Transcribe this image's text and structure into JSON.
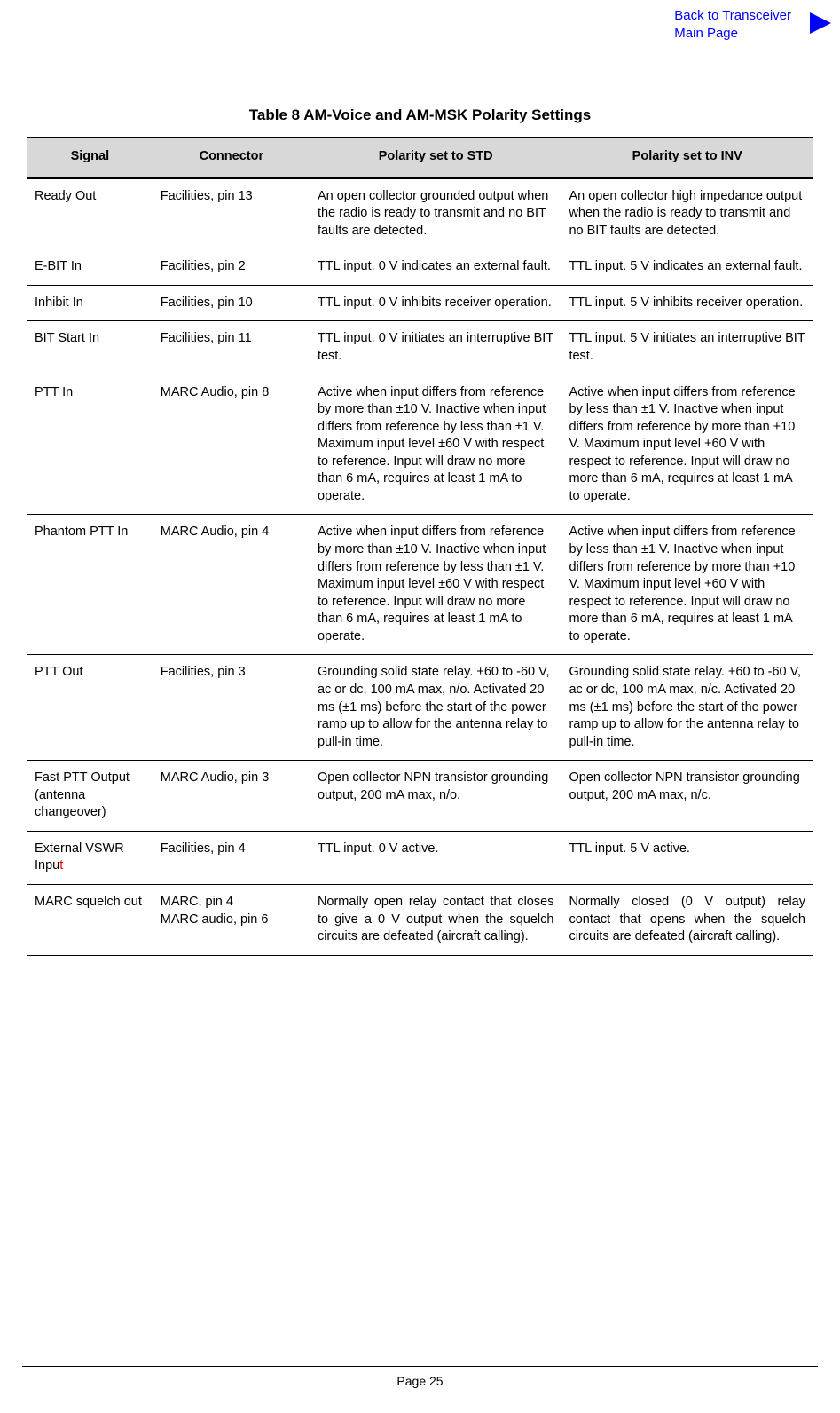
{
  "header": {
    "back_link_line1": "Back to Transceiver",
    "back_link_line2": "Main Page"
  },
  "table": {
    "title": "Table 8 AM-Voice and AM-MSK Polarity Settings",
    "columns": {
      "signal": "Signal",
      "connector": "Connector",
      "std": "Polarity set to STD",
      "inv": "Polarity set to INV"
    },
    "rows": [
      {
        "signal": "Ready Out",
        "connector": "Facilities, pin 13",
        "std": "An open collector grounded output when the radio is ready to transmit and no BIT faults are detected.",
        "inv": "An open collector high impedance output when the radio is ready to transmit and no BIT faults are detected."
      },
      {
        "signal": "E-BIT In",
        "connector": "Facilities, pin 2",
        "std": "TTL input. 0 V indicates an external fault.",
        "inv": "TTL input. 5 V indicates an external fault."
      },
      {
        "signal": "Inhibit In",
        "connector": "Facilities, pin 10",
        "std": "TTL input. 0 V inhibits receiver operation.",
        "inv": "TTL input. 5 V inhibits receiver operation."
      },
      {
        "signal": "BIT Start In",
        "connector": "Facilities, pin 11",
        "std": "TTL input. 0 V initiates an interruptive BIT test.",
        "inv": "TTL input. 5 V initiates an interruptive BIT test."
      },
      {
        "signal": "PTT In",
        "connector": "MARC Audio, pin 8",
        "std": "Active when input differs from reference by more than ±10 V. Inactive when input differs from reference by less than ±1 V. Maximum input level ±60 V with respect to reference. Input will draw no more than 6 mA, requires at least 1 mA to operate.",
        "inv": "Active when input differs from reference by less than ±1 V. Inactive when input differs from reference by more than +10 V. Maximum input level +60 V with respect to reference. Input will draw no more than 6 mA, requires at least 1 mA to operate."
      },
      {
        "signal": "Phantom PTT In",
        "connector": "MARC Audio, pin 4",
        "std": "Active when input differs from reference by more than ±10 V. Inactive when input differs from reference by less than ±1 V. Maximum input level ±60 V with respect to reference. Input will draw no more than 6 mA, requires at least 1 mA to operate.",
        "inv": "Active when input differs from reference by less than ±1 V. Inactive when input differs from reference by more than +10 V. Maximum input level +60 V with respect to reference. Input will draw no more than 6 mA, requires at least 1 mA to operate."
      },
      {
        "signal": "PTT Out",
        "connector": "Facilities, pin 3",
        "std": "Grounding solid state relay. +60 to -60 V, ac or dc, 100 mA max, n/o. Activated 20 ms (±1 ms) before the start of the power ramp up to allow for the antenna relay to pull-in time.",
        "inv": "Grounding solid state relay. +60 to -60 V, ac or dc, 100 mA max, n/c. Activated 20 ms (±1 ms) before the start of the power ramp up to allow for the antenna relay to pull-in time."
      },
      {
        "signal": "Fast PTT Output (antenna changeover)",
        "connector": "MARC Audio, pin 3",
        "std": "Open collector NPN transistor grounding output, 200 mA max, n/o.",
        "inv": "Open collector NPN transistor grounding output, 200 mA max, n/c."
      },
      {
        "signal_prefix": "External VSWR Inpu",
        "signal_suffix": "t",
        "connector": "Facilities, pin 4",
        "std": "TTL input. 0 V active.",
        "inv": "TTL input. 5 V active."
      },
      {
        "signal": "MARC squelch out",
        "connector_line1": "MARC, pin 4",
        "connector_line2": "MARC audio, pin 6",
        "std": "Normally open relay contact that closes to give a 0 V output when the squelch circuits are defeated (aircraft calling).",
        "inv": "Normally closed (0 V output) relay contact that opens when the squelch circuits are defeated (aircraft calling)."
      }
    ]
  },
  "footer": {
    "page_number": "Page 25"
  },
  "colors": {
    "link": "#0000ff",
    "header_bg": "#d8d8d8",
    "text": "#000000",
    "red": "#ff0000",
    "bg": "#ffffff"
  }
}
